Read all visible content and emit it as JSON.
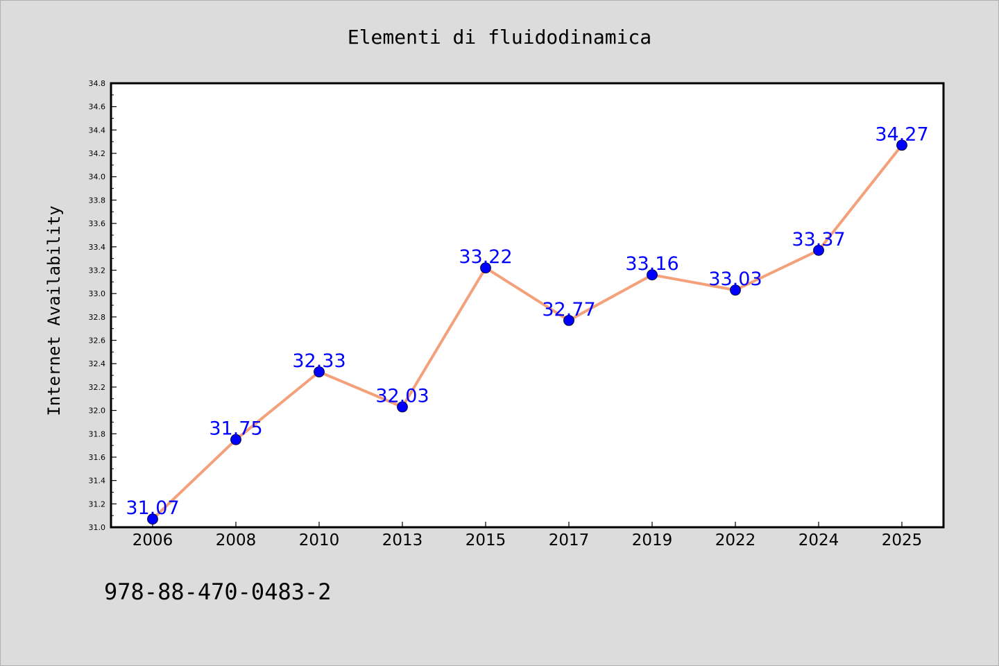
{
  "footer": {
    "code_text": "978-88-470-0483-2"
  },
  "colors": {
    "background": "#dcdcdc",
    "plot_background": "#ffffff",
    "line": "#f4a07a",
    "marker": "#0000ff",
    "data_label": "#0000ff"
  },
  "chart_data": {
    "type": "line",
    "title": "Elementi di fluidodinamica",
    "xlabel": "",
    "ylabel": "Internet Availability",
    "categories": [
      "2006",
      "2008",
      "2010",
      "2013",
      "2015",
      "2017",
      "2019",
      "2022",
      "2024",
      "2025"
    ],
    "series": [
      {
        "values": [
          31.07,
          31.75,
          32.33,
          32.03,
          33.22,
          32.77,
          33.16,
          33.03,
          33.37,
          34.27
        ],
        "labels": [
          "31.07",
          "31.75",
          "32.33",
          "32.03",
          "33.22",
          "32.77",
          "33.16",
          "33.03",
          "33.37",
          "34.27"
        ]
      }
    ],
    "ylim": [
      31.0,
      34.8
    ],
    "yticks": [
      "31.0",
      "31.2",
      "31.4",
      "31.6",
      "31.8",
      "32.0",
      "32.2",
      "32.4",
      "32.6",
      "32.8",
      "33.0",
      "33.2",
      "33.4",
      "33.6",
      "33.8",
      "34.0",
      "34.2",
      "34.4",
      "34.6",
      "34.8"
    ],
    "grid": false,
    "legend": "none"
  }
}
